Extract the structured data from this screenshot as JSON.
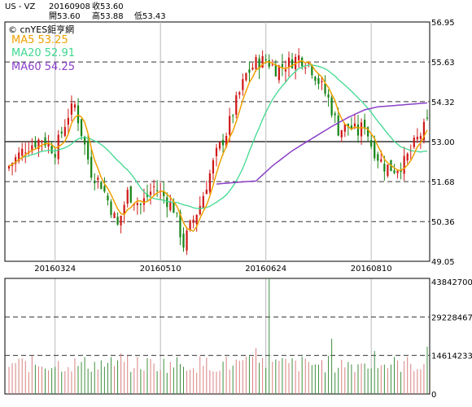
{
  "header": {
    "symbol": "US - VZ",
    "date": "20160908",
    "close": "收53.60",
    "open": "開53.60",
    "high": "高53.88",
    "low": "低53.43"
  },
  "legend": {
    "brand": "cnYES鉅亨網",
    "ma5": "MA5 53.25",
    "ma20": "MA20 52.91",
    "ma60": "MA60 54.25"
  },
  "colors": {
    "up": "#d01818",
    "down": "#178517",
    "ma5": "#f0a000",
    "ma20": "#40d890",
    "ma60": "#8a40c8",
    "vol_up": "#d98080",
    "vol_down": "#3f8f3f"
  },
  "chart_data": [
    {
      "type": "candlestick",
      "title": "",
      "ylim": [
        49.05,
        56.95
      ],
      "y_ticks": [
        "56.95",
        "55.63",
        "54.32",
        "53.00",
        "51.68",
        "50.36",
        "49.05"
      ],
      "x_ticks": [
        "20160324",
        "20160510",
        "20160624",
        "20160810"
      ],
      "n_days": 128,
      "x_tick_index": [
        14,
        46,
        78,
        110
      ],
      "close_anchors": [
        [
          0,
          52.2
        ],
        [
          5,
          52.8
        ],
        [
          10,
          53.1
        ],
        [
          14,
          52.7
        ],
        [
          18,
          53.9
        ],
        [
          20,
          54.2
        ],
        [
          22,
          53.3
        ],
        [
          25,
          52.0
        ],
        [
          28,
          51.6
        ],
        [
          31,
          50.8
        ],
        [
          33,
          50.2
        ],
        [
          36,
          51.3
        ],
        [
          40,
          50.9
        ],
        [
          44,
          51.5
        ],
        [
          47,
          51.2
        ],
        [
          50,
          50.8
        ],
        [
          53,
          49.6
        ],
        [
          55,
          50.2
        ],
        [
          58,
          50.9
        ],
        [
          60,
          51.6
        ],
        [
          63,
          52.6
        ],
        [
          66,
          53.3
        ],
        [
          69,
          54.3
        ],
        [
          72,
          55.2
        ],
        [
          75,
          55.6
        ],
        [
          78,
          55.7
        ],
        [
          81,
          55.4
        ],
        [
          85,
          55.6
        ],
        [
          88,
          55.8
        ],
        [
          91,
          55.6
        ],
        [
          94,
          55.0
        ],
        [
          97,
          54.4
        ],
        [
          100,
          53.4
        ],
        [
          103,
          53.5
        ],
        [
          106,
          53.3
        ],
        [
          108,
          53.6
        ],
        [
          110,
          52.9
        ],
        [
          112,
          52.5
        ],
        [
          114,
          52.2
        ],
        [
          117,
          52.1
        ],
        [
          120,
          52.3
        ],
        [
          123,
          52.9
        ],
        [
          127,
          53.6
        ]
      ],
      "ma60_anchors": [
        [
          63,
          51.6
        ],
        [
          72,
          51.68
        ],
        [
          75,
          51.7
        ],
        [
          80,
          52.2
        ],
        [
          86,
          52.7
        ],
        [
          92,
          53.1
        ],
        [
          98,
          53.5
        ],
        [
          103,
          53.8
        ],
        [
          108,
          54.05
        ],
        [
          112,
          54.15
        ],
        [
          118,
          54.2
        ],
        [
          127,
          54.28
        ]
      ],
      "ma5_last": 53.25,
      "ma20_last": 52.91,
      "ma60_last": 54.25
    },
    {
      "type": "bar",
      "title": "",
      "ylim": [
        0,
        43842700
      ],
      "y_ticks": [
        "43842700",
        "29228467",
        "14614233",
        "0"
      ],
      "peak_volume": 43842700,
      "peak_index": 79,
      "typical_volume_range": [
        8000000,
        14600000
      ]
    }
  ]
}
